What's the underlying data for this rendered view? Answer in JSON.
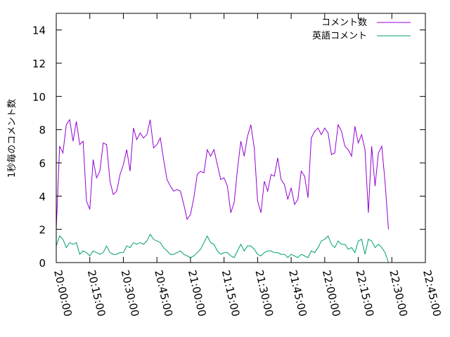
{
  "chart_data": {
    "type": "line",
    "ylabel": "1秒毎のコメント数",
    "ylim": [
      0,
      15
    ],
    "y_ticks": [
      0,
      2,
      4,
      6,
      8,
      10,
      12,
      14
    ],
    "y_tick_labels": [
      "0",
      "2",
      "4",
      "6",
      "8",
      "10",
      "12",
      "14"
    ],
    "xlim": [
      "20:00:00",
      "22:45:00"
    ],
    "x_tick_labels": [
      "20:00:00",
      "20:15:00",
      "20:30:00",
      "20:45:00",
      "21:00:00",
      "21:15:00",
      "21:30:00",
      "21:45:00",
      "22:00:00",
      "22:15:00",
      "22:30:00",
      "22:45:00"
    ],
    "grid": false,
    "legend_position": "top-right",
    "series": [
      {
        "name": "コメント数",
        "color": "#9400d3",
        "points": [
          [
            "20:00:00",
            2.0
          ],
          [
            "20:01:30",
            7.0
          ],
          [
            "20:03:00",
            6.6
          ],
          [
            "20:04:30",
            8.3
          ],
          [
            "20:06:00",
            8.6
          ],
          [
            "20:07:30",
            7.3
          ],
          [
            "20:09:00",
            8.5
          ],
          [
            "20:10:30",
            7.1
          ],
          [
            "20:12:00",
            7.3
          ],
          [
            "20:13:30",
            3.7
          ],
          [
            "20:15:00",
            3.2
          ],
          [
            "20:16:30",
            6.2
          ],
          [
            "20:18:00",
            5.1
          ],
          [
            "20:19:30",
            5.5
          ],
          [
            "20:21:00",
            7.2
          ],
          [
            "20:22:30",
            7.1
          ],
          [
            "20:24:00",
            4.9
          ],
          [
            "20:25:30",
            4.1
          ],
          [
            "20:27:00",
            4.3
          ],
          [
            "20:28:30",
            5.3
          ],
          [
            "20:30:00",
            5.9
          ],
          [
            "20:31:30",
            6.8
          ],
          [
            "20:33:00",
            5.5
          ],
          [
            "20:34:30",
            8.1
          ],
          [
            "20:36:00",
            7.4
          ],
          [
            "20:37:30",
            7.8
          ],
          [
            "20:39:00",
            7.5
          ],
          [
            "20:40:30",
            7.7
          ],
          [
            "20:42:00",
            8.6
          ],
          [
            "20:43:30",
            6.9
          ],
          [
            "20:45:00",
            7.1
          ],
          [
            "20:46:30",
            7.5
          ],
          [
            "20:48:00",
            6.2
          ],
          [
            "20:49:30",
            5.0
          ],
          [
            "20:51:00",
            4.6
          ],
          [
            "20:52:30",
            4.3
          ],
          [
            "20:54:00",
            4.4
          ],
          [
            "20:55:30",
            4.3
          ],
          [
            "20:57:00",
            3.5
          ],
          [
            "20:58:30",
            2.6
          ],
          [
            "21:00:00",
            2.9
          ],
          [
            "21:01:30",
            3.9
          ],
          [
            "21:03:00",
            5.3
          ],
          [
            "21:04:30",
            5.5
          ],
          [
            "21:06:00",
            5.4
          ],
          [
            "21:07:30",
            6.8
          ],
          [
            "21:09:00",
            6.4
          ],
          [
            "21:10:30",
            6.8
          ],
          [
            "21:12:00",
            5.9
          ],
          [
            "21:13:30",
            5.0
          ],
          [
            "21:15:00",
            5.1
          ],
          [
            "21:16:30",
            4.6
          ],
          [
            "21:18:00",
            3.0
          ],
          [
            "21:19:30",
            3.6
          ],
          [
            "21:21:00",
            5.6
          ],
          [
            "21:22:30",
            7.3
          ],
          [
            "21:24:00",
            6.4
          ],
          [
            "21:25:30",
            7.6
          ],
          [
            "21:27:00",
            8.3
          ],
          [
            "21:28:30",
            6.9
          ],
          [
            "21:30:00",
            3.7
          ],
          [
            "21:31:30",
            3.0
          ],
          [
            "21:33:00",
            4.9
          ],
          [
            "21:34:30",
            4.3
          ],
          [
            "21:36:00",
            5.3
          ],
          [
            "21:37:30",
            5.2
          ],
          [
            "21:39:00",
            6.3
          ],
          [
            "21:40:30",
            5.0
          ],
          [
            "21:42:00",
            4.7
          ],
          [
            "21:43:30",
            3.8
          ],
          [
            "21:45:00",
            4.5
          ],
          [
            "21:46:30",
            3.5
          ],
          [
            "21:48:00",
            3.8
          ],
          [
            "21:49:30",
            5.5
          ],
          [
            "21:51:00",
            5.2
          ],
          [
            "21:52:30",
            3.9
          ],
          [
            "21:54:00",
            7.5
          ],
          [
            "21:55:30",
            7.9
          ],
          [
            "21:57:00",
            8.1
          ],
          [
            "21:58:30",
            7.7
          ],
          [
            "22:00:00",
            8.1
          ],
          [
            "22:01:30",
            7.8
          ],
          [
            "22:03:00",
            6.5
          ],
          [
            "22:04:30",
            6.6
          ],
          [
            "22:06:00",
            8.3
          ],
          [
            "22:07:30",
            7.9
          ],
          [
            "22:09:00",
            7.0
          ],
          [
            "22:10:30",
            6.8
          ],
          [
            "22:12:00",
            6.4
          ],
          [
            "22:13:30",
            8.2
          ],
          [
            "22:15:00",
            7.2
          ],
          [
            "22:16:30",
            7.7
          ],
          [
            "22:18:00",
            6.8
          ],
          [
            "22:19:30",
            3.0
          ],
          [
            "22:21:00",
            7.0
          ],
          [
            "22:22:30",
            4.6
          ],
          [
            "22:24:00",
            6.6
          ],
          [
            "22:25:30",
            7.0
          ],
          [
            "22:27:00",
            4.8
          ],
          [
            "22:28:30",
            2.0
          ]
        ]
      },
      {
        "name": "英語コメント",
        "color": "#009e73",
        "points": [
          [
            "20:00:00",
            1.0
          ],
          [
            "20:01:30",
            1.6
          ],
          [
            "20:03:00",
            1.4
          ],
          [
            "20:04:30",
            0.9
          ],
          [
            "20:06:00",
            1.2
          ],
          [
            "20:07:30",
            1.1
          ],
          [
            "20:09:00",
            1.2
          ],
          [
            "20:10:30",
            0.5
          ],
          [
            "20:12:00",
            0.7
          ],
          [
            "20:13:30",
            0.6
          ],
          [
            "20:15:00",
            0.4
          ],
          [
            "20:16:30",
            0.7
          ],
          [
            "20:18:00",
            0.6
          ],
          [
            "20:19:30",
            0.5
          ],
          [
            "20:21:00",
            0.6
          ],
          [
            "20:22:30",
            1.0
          ],
          [
            "20:24:00",
            0.6
          ],
          [
            "20:25:30",
            0.5
          ],
          [
            "20:27:00",
            0.5
          ],
          [
            "20:28:30",
            0.6
          ],
          [
            "20:30:00",
            0.6
          ],
          [
            "20:31:30",
            1.0
          ],
          [
            "20:33:00",
            0.9
          ],
          [
            "20:34:30",
            1.2
          ],
          [
            "20:36:00",
            1.1
          ],
          [
            "20:37:30",
            1.2
          ],
          [
            "20:39:00",
            1.1
          ],
          [
            "20:40:30",
            1.3
          ],
          [
            "20:42:00",
            1.7
          ],
          [
            "20:43:30",
            1.4
          ],
          [
            "20:45:00",
            1.3
          ],
          [
            "20:46:30",
            1.2
          ],
          [
            "20:48:00",
            0.9
          ],
          [
            "20:49:30",
            0.7
          ],
          [
            "20:51:00",
            0.5
          ],
          [
            "20:52:30",
            0.5
          ],
          [
            "20:54:00",
            0.6
          ],
          [
            "20:55:30",
            0.7
          ],
          [
            "20:57:00",
            0.5
          ],
          [
            "20:58:30",
            0.4
          ],
          [
            "21:00:00",
            0.3
          ],
          [
            "21:01:30",
            0.4
          ],
          [
            "21:03:00",
            0.6
          ],
          [
            "21:04:30",
            0.8
          ],
          [
            "21:06:00",
            1.2
          ],
          [
            "21:07:30",
            1.6
          ],
          [
            "21:09:00",
            1.2
          ],
          [
            "21:10:30",
            1.1
          ],
          [
            "21:12:00",
            0.7
          ],
          [
            "21:13:30",
            0.5
          ],
          [
            "21:15:00",
            0.6
          ],
          [
            "21:16:30",
            0.6
          ],
          [
            "21:18:00",
            0.4
          ],
          [
            "21:19:30",
            0.3
          ],
          [
            "21:21:00",
            0.7
          ],
          [
            "21:22:30",
            1.1
          ],
          [
            "21:24:00",
            0.7
          ],
          [
            "21:25:30",
            1.0
          ],
          [
            "21:27:00",
            1.0
          ],
          [
            "21:28:30",
            0.8
          ],
          [
            "21:30:00",
            0.5
          ],
          [
            "21:31:30",
            0.4
          ],
          [
            "21:33:00",
            0.6
          ],
          [
            "21:34:30",
            0.7
          ],
          [
            "21:36:00",
            0.7
          ],
          [
            "21:37:30",
            0.6
          ],
          [
            "21:39:00",
            0.6
          ],
          [
            "21:40:30",
            0.5
          ],
          [
            "21:42:00",
            0.5
          ],
          [
            "21:43:30",
            0.3
          ],
          [
            "21:45:00",
            0.5
          ],
          [
            "21:46:30",
            0.4
          ],
          [
            "21:48:00",
            0.3
          ],
          [
            "21:49:30",
            0.5
          ],
          [
            "21:51:00",
            0.4
          ],
          [
            "21:52:30",
            0.3
          ],
          [
            "21:54:00",
            0.7
          ],
          [
            "21:55:30",
            0.6
          ],
          [
            "21:57:00",
            0.9
          ],
          [
            "21:58:30",
            1.3
          ],
          [
            "22:00:00",
            1.4
          ],
          [
            "22:01:30",
            1.6
          ],
          [
            "22:03:00",
            1.1
          ],
          [
            "22:04:30",
            0.9
          ],
          [
            "22:06:00",
            1.3
          ],
          [
            "22:07:30",
            1.1
          ],
          [
            "22:09:00",
            1.1
          ],
          [
            "22:10:30",
            0.8
          ],
          [
            "22:12:00",
            0.9
          ],
          [
            "22:13:30",
            0.6
          ],
          [
            "22:15:00",
            1.3
          ],
          [
            "22:16:30",
            1.4
          ],
          [
            "22:18:00",
            0.5
          ],
          [
            "22:19:30",
            1.4
          ],
          [
            "22:21:00",
            1.3
          ],
          [
            "22:22:30",
            0.9
          ],
          [
            "22:24:00",
            1.1
          ],
          [
            "22:25:30",
            0.9
          ],
          [
            "22:27:00",
            0.6
          ],
          [
            "22:28:30",
            0.0
          ]
        ]
      }
    ]
  }
}
